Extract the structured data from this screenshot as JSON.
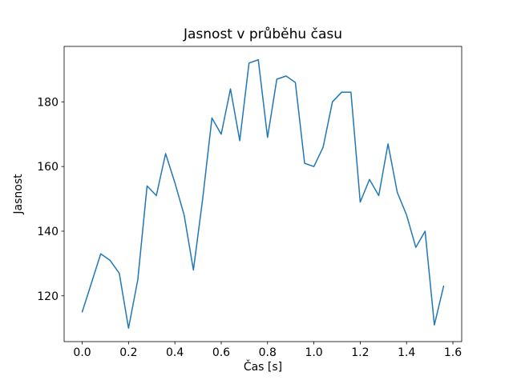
{
  "chart_data": {
    "type": "line",
    "title": "Jasnost v průběhu času",
    "xlabel": "Čas [s]",
    "ylabel": "Jasnost",
    "x": [
      0.0,
      0.04,
      0.08,
      0.12,
      0.16,
      0.2,
      0.24,
      0.28,
      0.32,
      0.36,
      0.4,
      0.44,
      0.48,
      0.52,
      0.56,
      0.6,
      0.64,
      0.68,
      0.72,
      0.76,
      0.8,
      0.84,
      0.88,
      0.92,
      0.96,
      1.0,
      1.04,
      1.08,
      1.12,
      1.16,
      1.2,
      1.24,
      1.28,
      1.32,
      1.36,
      1.4,
      1.44,
      1.48,
      1.52,
      1.56
    ],
    "y": [
      115,
      124,
      133,
      131,
      127,
      110,
      125,
      154,
      151,
      164,
      155,
      145,
      128,
      150,
      175,
      170,
      184,
      168,
      192,
      193,
      169,
      187,
      188,
      186,
      161,
      160,
      166,
      180,
      183,
      183,
      149,
      156,
      151,
      167,
      152,
      145,
      135,
      140,
      111,
      123
    ],
    "xticks": [
      0.0,
      0.2,
      0.4,
      0.6,
      0.8,
      1.0,
      1.2,
      1.4,
      1.6
    ],
    "xtick_labels": [
      "0.0",
      "0.2",
      "0.4",
      "0.6",
      "0.8",
      "1.0",
      "1.2",
      "1.4",
      "1.6"
    ],
    "yticks": [
      120,
      140,
      160,
      180
    ],
    "ytick_labels": [
      "120",
      "140",
      "160",
      "180"
    ],
    "xlim": [
      -0.078,
      1.638
    ],
    "ylim": [
      105.85,
      197.15
    ],
    "line_color": "#1f77b4",
    "axis_color": "#000000",
    "background": "#ffffff",
    "grid": false,
    "legend": "none"
  }
}
